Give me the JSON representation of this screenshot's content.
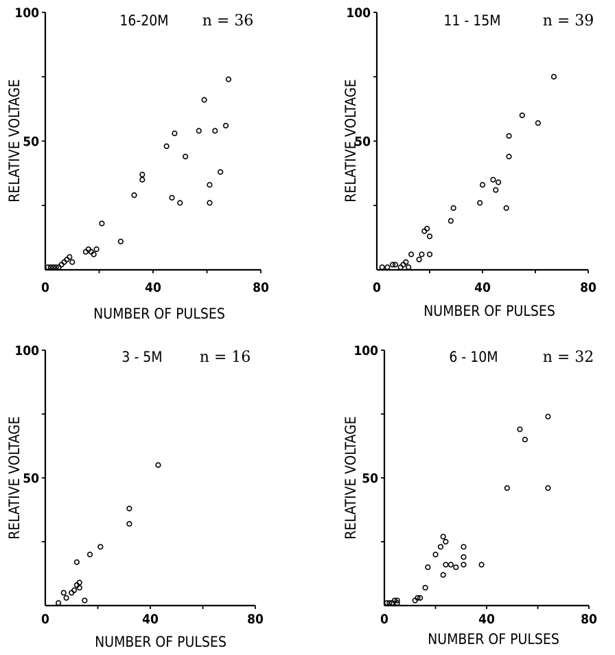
{
  "chart_data": [
    {
      "type": "scatter",
      "title": "16-20M",
      "n_label": "n = 36",
      "xlabel": "NUMBER OF PULSES",
      "ylabel": "RELATIVE VOLTAGE",
      "xlim": [
        0,
        80
      ],
      "ylim": [
        0,
        100
      ],
      "xticks": [
        "0",
        "40",
        "80"
      ],
      "yticks": [
        "50",
        "100"
      ],
      "points": [
        [
          1,
          1
        ],
        [
          2,
          1
        ],
        [
          3,
          1
        ],
        [
          4,
          1
        ],
        [
          5,
          1
        ],
        [
          6,
          2
        ],
        [
          7,
          3
        ],
        [
          8,
          4
        ],
        [
          9,
          5
        ],
        [
          10,
          3
        ],
        [
          15,
          7
        ],
        [
          16,
          8
        ],
        [
          17,
          7
        ],
        [
          18,
          6
        ],
        [
          19,
          8
        ],
        [
          21,
          18
        ],
        [
          28,
          11
        ],
        [
          33,
          29
        ],
        [
          36,
          37
        ],
        [
          36,
          35
        ],
        [
          45,
          48
        ],
        [
          47,
          28
        ],
        [
          48,
          53
        ],
        [
          50,
          26
        ],
        [
          52,
          44
        ],
        [
          57,
          54
        ],
        [
          59,
          66
        ],
        [
          61,
          33
        ],
        [
          61,
          26
        ],
        [
          63,
          54
        ],
        [
          65,
          38
        ],
        [
          67,
          56
        ],
        [
          68,
          74
        ]
      ]
    },
    {
      "type": "scatter",
      "title": "11 - 15M",
      "n_label": "n = 39",
      "xlabel": "NUMBER OF PULSES",
      "ylabel": "RELATIVE VOLTAGE",
      "xlim": [
        0,
        80
      ],
      "ylim": [
        0,
        100
      ],
      "xticks": [
        "0",
        "40",
        "80"
      ],
      "yticks": [
        "50",
        "100"
      ],
      "points": [
        [
          2,
          1
        ],
        [
          4,
          1
        ],
        [
          6,
          2
        ],
        [
          7,
          2
        ],
        [
          9,
          1
        ],
        [
          10,
          2
        ],
        [
          11,
          3
        ],
        [
          12,
          1
        ],
        [
          13,
          6
        ],
        [
          16,
          4
        ],
        [
          17,
          6
        ],
        [
          18,
          15
        ],
        [
          19,
          16
        ],
        [
          20,
          13
        ],
        [
          20,
          6
        ],
        [
          28,
          19
        ],
        [
          29,
          24
        ],
        [
          39,
          26
        ],
        [
          40,
          33
        ],
        [
          44,
          35
        ],
        [
          45,
          31
        ],
        [
          46,
          34
        ],
        [
          49,
          24
        ],
        [
          50,
          44
        ],
        [
          50,
          52
        ],
        [
          55,
          60
        ],
        [
          61,
          57
        ],
        [
          67,
          75
        ]
      ]
    },
    {
      "type": "scatter",
      "title": "3 - 5M",
      "n_label": "n = 16",
      "xlabel": "NUMBER OF PULSES",
      "ylabel": "RELATIVE VOLTAGE",
      "xlim": [
        0,
        80
      ],
      "ylim": [
        0,
        100
      ],
      "xticks": [
        "0",
        "40",
        "80"
      ],
      "yticks": [
        "50",
        "100"
      ],
      "points": [
        [
          5,
          1
        ],
        [
          7,
          5
        ],
        [
          8,
          3
        ],
        [
          10,
          5
        ],
        [
          11,
          6
        ],
        [
          12,
          8
        ],
        [
          13,
          7
        ],
        [
          12,
          17
        ],
        [
          13,
          9
        ],
        [
          15,
          2
        ],
        [
          17,
          20
        ],
        [
          21,
          23
        ],
        [
          32,
          38
        ],
        [
          32,
          32
        ],
        [
          43,
          55
        ]
      ]
    },
    {
      "type": "scatter",
      "title": "6 - 10M",
      "n_label": "n = 32",
      "xlabel": "NUMBER OF PULSES",
      "ylabel": "RELATIVE VOLTAGE",
      "xlim": [
        0,
        80
      ],
      "ylim": [
        0,
        100
      ],
      "xticks": [
        "0",
        "40",
        "80"
      ],
      "yticks": [
        "50",
        "100"
      ],
      "points": [
        [
          1,
          1
        ],
        [
          2,
          1
        ],
        [
          3,
          1
        ],
        [
          4,
          2
        ],
        [
          5,
          1
        ],
        [
          5,
          2
        ],
        [
          12,
          2
        ],
        [
          13,
          3
        ],
        [
          14,
          3
        ],
        [
          16,
          7
        ],
        [
          17,
          15
        ],
        [
          20,
          20
        ],
        [
          22,
          23
        ],
        [
          23,
          27
        ],
        [
          24,
          25
        ],
        [
          23,
          12
        ],
        [
          24,
          16
        ],
        [
          26,
          16
        ],
        [
          28,
          15
        ],
        [
          31,
          19
        ],
        [
          31,
          23
        ],
        [
          31,
          16
        ],
        [
          38,
          16
        ],
        [
          48,
          46
        ],
        [
          53,
          69
        ],
        [
          55,
          65
        ],
        [
          64,
          74
        ],
        [
          64,
          46
        ]
      ]
    }
  ]
}
